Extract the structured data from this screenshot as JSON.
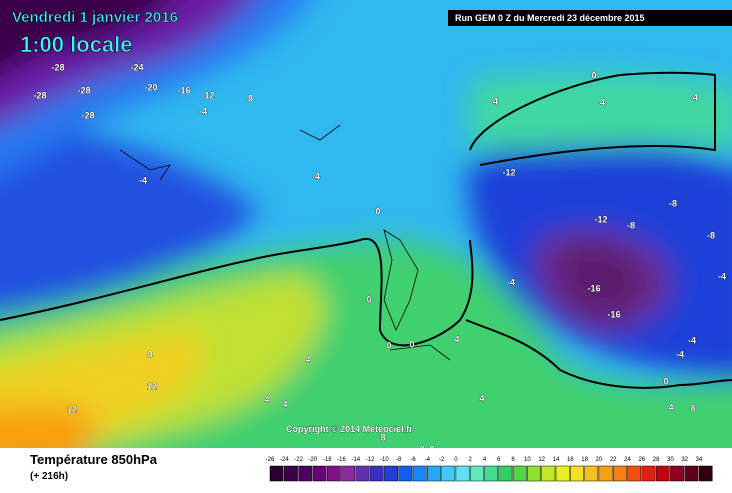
{
  "header": {
    "date": "Vendredi 1 janvier 2016",
    "time": "1:00 locale",
    "run": "Run GEM 0 Z du Mercredi 23 décembre 2015"
  },
  "copyright": "Copyright © 2014 Meteociel.fr",
  "footer": {
    "title": "Température 850hPa",
    "lead": "(+ 216h)"
  },
  "map_labels": [
    -28,
    -24,
    -28,
    -28,
    -20,
    -16,
    -12,
    -28,
    -8,
    -4,
    -4,
    -4,
    0,
    -4,
    0,
    -4,
    -4,
    -12,
    -12,
    -8,
    -8,
    -8,
    -4,
    -16,
    -16,
    -4,
    -4,
    -4,
    0,
    0,
    0,
    4,
    8,
    4,
    4,
    4,
    12,
    12,
    4,
    8,
    8,
    8,
    4,
    8,
    0
  ],
  "scale": {
    "ticks": [
      -26,
      -24,
      -22,
      -20,
      -18,
      -16,
      -14,
      -12,
      -10,
      -8,
      -6,
      -4,
      -2,
      0,
      2,
      4,
      6,
      8,
      10,
      12,
      14,
      16,
      18,
      20,
      22,
      24,
      26,
      28,
      30,
      32,
      34
    ],
    "colors": [
      "#2a0030",
      "#3a0048",
      "#50005e",
      "#680075",
      "#80108a",
      "#8a2aa0",
      "#6030b0",
      "#3a30c0",
      "#2040d8",
      "#1060f0",
      "#1888f8",
      "#28a8f8",
      "#40c8f8",
      "#60e0f0",
      "#60e8c0",
      "#40e090",
      "#30d060",
      "#50d840",
      "#90e030",
      "#c0e828",
      "#e8f020",
      "#f8e020",
      "#f8c018",
      "#f8a010",
      "#f88010",
      "#f05010",
      "#e02010",
      "#c00010",
      "#900020",
      "#600018",
      "#300010"
    ]
  }
}
